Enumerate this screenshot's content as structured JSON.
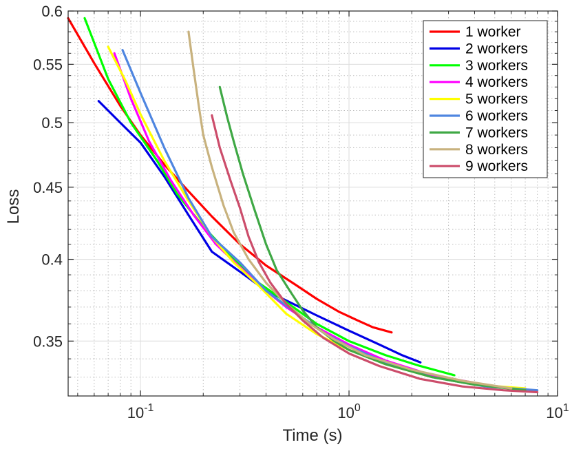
{
  "chart_data": {
    "type": "line",
    "title": "",
    "xlabel": "Time (s)",
    "ylabel": "Loss",
    "xscale": "log",
    "yscale": "log",
    "xlim": [
      0.045,
      10
    ],
    "ylim": [
      0.32,
      0.6
    ],
    "legend_position": "top-right",
    "x_ticks": [
      {
        "base": "10",
        "exp": "-1"
      },
      {
        "base": "10",
        "exp": "0"
      },
      {
        "base": "10",
        "exp": "1"
      }
    ],
    "y_ticks": [
      "0.35",
      "0.4",
      "0.45",
      "0.5",
      "0.55",
      "0.6"
    ],
    "series": [
      {
        "name": "1 worker",
        "color": "#ff0000",
        "points": [
          [
            0.045,
            0.593
          ],
          [
            0.06,
            0.551
          ],
          [
            0.08,
            0.514
          ],
          [
            0.1,
            0.49
          ],
          [
            0.13,
            0.467
          ],
          [
            0.17,
            0.447
          ],
          [
            0.22,
            0.429
          ],
          [
            0.3,
            0.41
          ],
          [
            0.4,
            0.396
          ],
          [
            0.55,
            0.384
          ],
          [
            0.7,
            0.375
          ],
          [
            0.9,
            0.367
          ],
          [
            1.1,
            0.362
          ],
          [
            1.3,
            0.358
          ],
          [
            1.6,
            0.355
          ]
        ]
      },
      {
        "name": "2 workers",
        "color": "#0000e6",
        "points": [
          [
            0.063,
            0.518
          ],
          [
            0.08,
            0.5
          ],
          [
            0.1,
            0.484
          ],
          [
            0.13,
            0.458
          ],
          [
            0.17,
            0.43
          ],
          [
            0.22,
            0.405
          ],
          [
            0.3,
            0.392
          ],
          [
            0.4,
            0.38
          ],
          [
            0.5,
            0.374
          ],
          [
            0.7,
            0.365
          ],
          [
            1.0,
            0.356
          ],
          [
            1.4,
            0.348
          ],
          [
            1.8,
            0.342
          ],
          [
            2.2,
            0.338
          ]
        ]
      },
      {
        "name": "3 workers",
        "color": "#00ff00",
        "points": [
          [
            0.054,
            0.593
          ],
          [
            0.07,
            0.537
          ],
          [
            0.09,
            0.5
          ],
          [
            0.12,
            0.47
          ],
          [
            0.15,
            0.445
          ],
          [
            0.2,
            0.422
          ],
          [
            0.26,
            0.405
          ],
          [
            0.35,
            0.387
          ],
          [
            0.5,
            0.373
          ],
          [
            0.7,
            0.36
          ],
          [
            1.0,
            0.35
          ],
          [
            1.5,
            0.342
          ],
          [
            2.2,
            0.336
          ],
          [
            3.2,
            0.331
          ]
        ]
      },
      {
        "name": "4 workers",
        "color": "#ff00ff",
        "points": [
          [
            0.075,
            0.56
          ],
          [
            0.09,
            0.52
          ],
          [
            0.11,
            0.485
          ],
          [
            0.14,
            0.455
          ],
          [
            0.18,
            0.43
          ],
          [
            0.23,
            0.41
          ],
          [
            0.3,
            0.395
          ],
          [
            0.4,
            0.38
          ],
          [
            0.5,
            0.37
          ],
          [
            0.7,
            0.358
          ],
          [
            1.0,
            0.348
          ],
          [
            1.5,
            0.339
          ],
          [
            2.5,
            0.331
          ],
          [
            4.0,
            0.327
          ]
        ]
      },
      {
        "name": "5 workers",
        "color": "#ffff00",
        "points": [
          [
            0.07,
            0.566
          ],
          [
            0.085,
            0.535
          ],
          [
            0.1,
            0.507
          ],
          [
            0.13,
            0.47
          ],
          [
            0.17,
            0.44
          ],
          [
            0.22,
            0.415
          ],
          [
            0.28,
            0.398
          ],
          [
            0.37,
            0.383
          ],
          [
            0.5,
            0.366
          ],
          [
            0.7,
            0.354
          ],
          [
            1.0,
            0.345
          ],
          [
            1.5,
            0.337
          ],
          [
            2.5,
            0.33
          ],
          [
            4.0,
            0.326
          ],
          [
            7.0,
            0.324
          ]
        ]
      },
      {
        "name": "6 workers",
        "color": "#4f86e0",
        "points": [
          [
            0.082,
            0.563
          ],
          [
            0.1,
            0.525
          ],
          [
            0.13,
            0.48
          ],
          [
            0.17,
            0.442
          ],
          [
            0.22,
            0.415
          ],
          [
            0.3,
            0.398
          ],
          [
            0.4,
            0.38
          ],
          [
            0.55,
            0.367
          ],
          [
            0.75,
            0.355
          ],
          [
            1.0,
            0.347
          ],
          [
            1.5,
            0.338
          ],
          [
            2.5,
            0.33
          ],
          [
            4.5,
            0.325
          ],
          [
            8.0,
            0.323
          ]
        ]
      },
      {
        "name": "7 workers",
        "color": "#3fa845",
        "points": [
          [
            0.24,
            0.53
          ],
          [
            0.26,
            0.505
          ],
          [
            0.28,
            0.485
          ],
          [
            0.31,
            0.46
          ],
          [
            0.35,
            0.435
          ],
          [
            0.4,
            0.41
          ],
          [
            0.45,
            0.393
          ],
          [
            0.52,
            0.38
          ],
          [
            0.6,
            0.368
          ],
          [
            0.7,
            0.358
          ],
          [
            0.85,
            0.35
          ],
          [
            1.0,
            0.345
          ],
          [
            1.5,
            0.337
          ],
          [
            2.5,
            0.33
          ],
          [
            4.0,
            0.326
          ],
          [
            7.0,
            0.323
          ]
        ]
      },
      {
        "name": "8 workers",
        "color": "#c8b27e",
        "points": [
          [
            0.17,
            0.58
          ],
          [
            0.18,
            0.545
          ],
          [
            0.19,
            0.515
          ],
          [
            0.2,
            0.49
          ],
          [
            0.22,
            0.465
          ],
          [
            0.25,
            0.437
          ],
          [
            0.28,
            0.418
          ],
          [
            0.33,
            0.4
          ],
          [
            0.4,
            0.385
          ],
          [
            0.5,
            0.372
          ],
          [
            0.65,
            0.36
          ],
          [
            0.85,
            0.351
          ],
          [
            1.2,
            0.342
          ],
          [
            2.0,
            0.334
          ],
          [
            3.5,
            0.328
          ],
          [
            6.0,
            0.324
          ]
        ]
      },
      {
        "name": "9 workers",
        "color": "#cc4d6b",
        "points": [
          [
            0.22,
            0.506
          ],
          [
            0.24,
            0.48
          ],
          [
            0.27,
            0.455
          ],
          [
            0.3,
            0.435
          ],
          [
            0.33,
            0.415
          ],
          [
            0.37,
            0.398
          ],
          [
            0.42,
            0.385
          ],
          [
            0.5,
            0.372
          ],
          [
            0.6,
            0.362
          ],
          [
            0.75,
            0.352
          ],
          [
            1.0,
            0.343
          ],
          [
            1.4,
            0.336
          ],
          [
            2.2,
            0.329
          ],
          [
            3.5,
            0.325
          ],
          [
            5.5,
            0.323
          ],
          [
            8.0,
            0.322
          ]
        ]
      }
    ]
  }
}
